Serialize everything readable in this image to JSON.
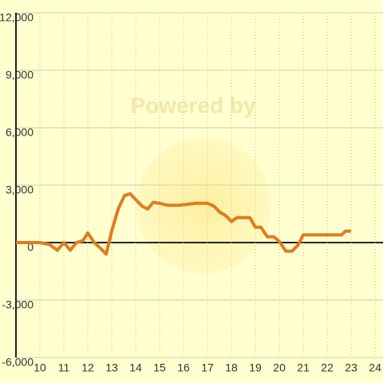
{
  "chart_data": {
    "type": "line",
    "watermark": "Powered by",
    "x": [
      9,
      10,
      10.4,
      10.73,
      11,
      11.27,
      11.53,
      11.8,
      12,
      12.27,
      12.53,
      12.77,
      13,
      13.27,
      13.53,
      13.77,
      14,
      14.27,
      14.5,
      14.73,
      15,
      15.33,
      15.83,
      16.17,
      16.5,
      17,
      17.27,
      17.5,
      17.77,
      18,
      18.23,
      18.77,
      19,
      19.23,
      19.5,
      19.77,
      20,
      20.27,
      20.53,
      20.77,
      21,
      21.33,
      22.33,
      22.6,
      22.77,
      23
    ],
    "series": [
      {
        "color": "#e07b20",
        "values": [
          0,
          0,
          -100,
          -400,
          0,
          -400,
          0,
          100,
          500,
          0,
          -300,
          -600,
          600,
          1750,
          2450,
          2550,
          2250,
          1900,
          1750,
          2100,
          2050,
          1950,
          1950,
          2000,
          2050,
          2050,
          1900,
          1600,
          1400,
          1100,
          1300,
          1300,
          800,
          800,
          300,
          300,
          50,
          -450,
          -450,
          -150,
          400,
          400,
          400,
          400,
          600,
          600
        ]
      }
    ],
    "xlim": [
      9,
      24.33
    ],
    "xticks": [
      10,
      11,
      12,
      13,
      14,
      15,
      16,
      17,
      18,
      19,
      20,
      21,
      22,
      23,
      24
    ],
    "ylim": [
      -6000,
      12000
    ],
    "yticks": [
      {
        "value": -6000,
        "label": "-6,000"
      },
      {
        "value": -3000,
        "label": "-3,000"
      },
      0,
      {
        "value": 3000,
        "label": "3,000"
      },
      {
        "value": 6000,
        "label": "6,000"
      },
      {
        "value": 9000,
        "label": "9,000"
      },
      {
        "value": 12000,
        "label": "12,000"
      }
    ],
    "grid": true
  }
}
